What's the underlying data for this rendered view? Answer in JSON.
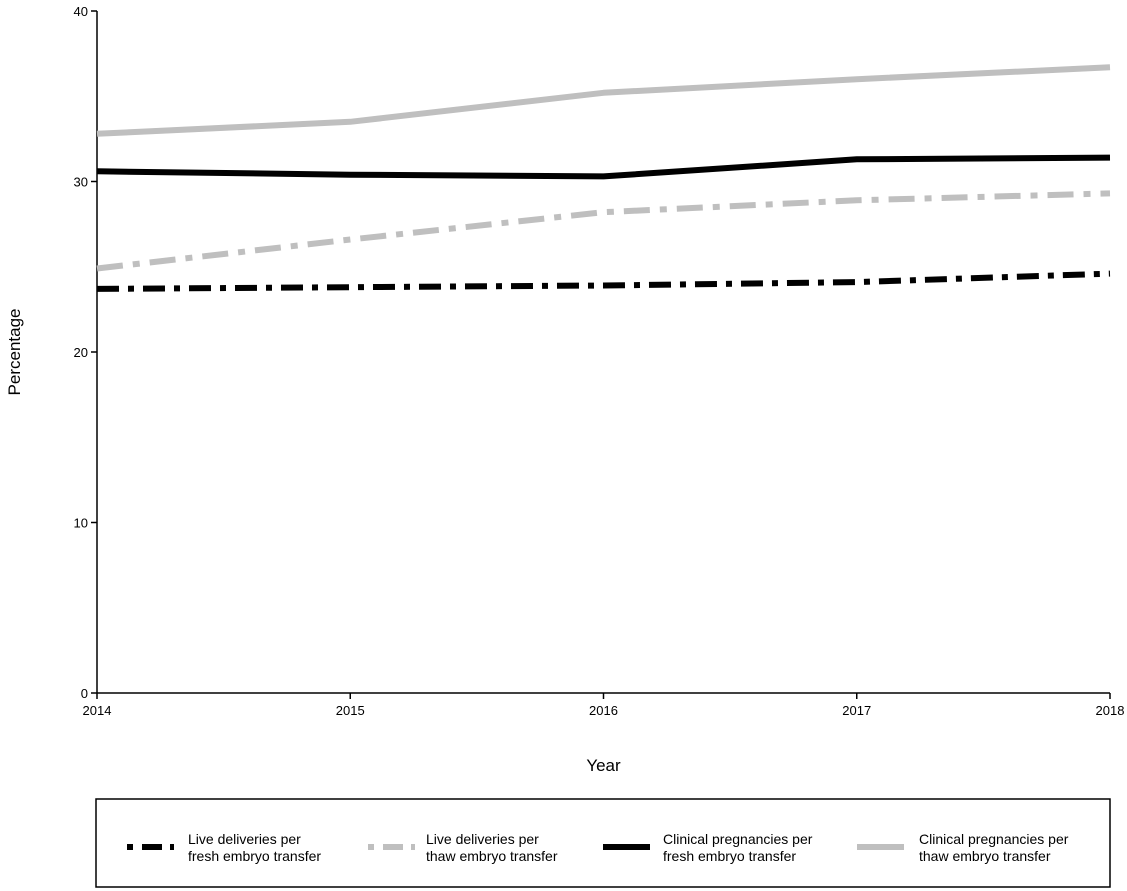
{
  "chart_data": {
    "type": "line",
    "title": "",
    "xlabel": "Year",
    "ylabel": "Percentage",
    "x": [
      2014,
      2015,
      2016,
      2017,
      2018
    ],
    "x_tick_labels": [
      "2014",
      "2015",
      "2016",
      "2017",
      "2018"
    ],
    "ylim": [
      0,
      40
    ],
    "y_ticks": [
      0,
      10,
      20,
      30,
      40
    ],
    "y_tick_labels": [
      "0",
      "10",
      "20",
      "30",
      "40"
    ],
    "grid": false,
    "legend_position": "bottom",
    "series": [
      {
        "name_lines": [
          "Live deliveries per",
          "fresh embryo transfer"
        ],
        "values": [
          23.7,
          23.8,
          23.9,
          24.1,
          24.6
        ],
        "color": "#000000",
        "style": "dash-dot"
      },
      {
        "name_lines": [
          "Live deliveries per",
          "thaw embryo transfer"
        ],
        "values": [
          24.9,
          26.6,
          28.2,
          28.9,
          29.3
        ],
        "color": "#bfbfbf",
        "style": "dash-dot"
      },
      {
        "name_lines": [
          "Clinical pregnancies per",
          "fresh embryo transfer"
        ],
        "values": [
          30.6,
          30.4,
          30.3,
          31.3,
          31.4
        ],
        "color": "#000000",
        "style": "solid"
      },
      {
        "name_lines": [
          "Clinical pregnancies per",
          "thaw embryo transfer"
        ],
        "values": [
          32.8,
          33.5,
          35.2,
          36.0,
          36.7
        ],
        "color": "#bfbfbf",
        "style": "solid"
      }
    ]
  }
}
